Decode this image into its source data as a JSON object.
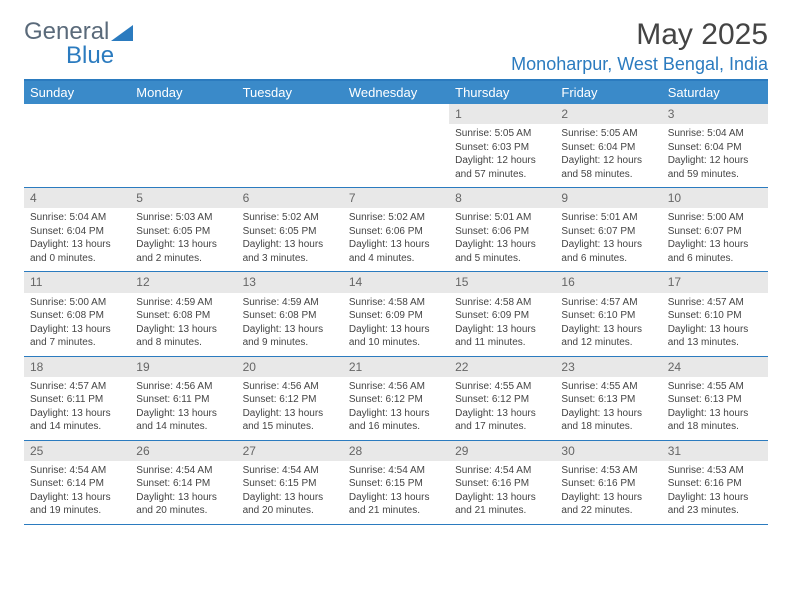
{
  "brand": {
    "part1": "General",
    "part2": "Blue"
  },
  "title": "May 2025",
  "location": "Monoharpur, West Bengal, India",
  "weekday_headers": [
    "Sunday",
    "Monday",
    "Tuesday",
    "Wednesday",
    "Thursday",
    "Friday",
    "Saturday"
  ],
  "colors": {
    "header_bg": "#3a8ac9",
    "accent": "#2b7bbf",
    "daynum_bg": "#e8e8e8",
    "text": "#444444"
  },
  "weeks": [
    [
      null,
      null,
      null,
      null,
      {
        "n": "1",
        "sr": "Sunrise: 5:05 AM",
        "ss": "Sunset: 6:03 PM",
        "dl": "Daylight: 12 hours and 57 minutes."
      },
      {
        "n": "2",
        "sr": "Sunrise: 5:05 AM",
        "ss": "Sunset: 6:04 PM",
        "dl": "Daylight: 12 hours and 58 minutes."
      },
      {
        "n": "3",
        "sr": "Sunrise: 5:04 AM",
        "ss": "Sunset: 6:04 PM",
        "dl": "Daylight: 12 hours and 59 minutes."
      }
    ],
    [
      {
        "n": "4",
        "sr": "Sunrise: 5:04 AM",
        "ss": "Sunset: 6:04 PM",
        "dl": "Daylight: 13 hours and 0 minutes."
      },
      {
        "n": "5",
        "sr": "Sunrise: 5:03 AM",
        "ss": "Sunset: 6:05 PM",
        "dl": "Daylight: 13 hours and 2 minutes."
      },
      {
        "n": "6",
        "sr": "Sunrise: 5:02 AM",
        "ss": "Sunset: 6:05 PM",
        "dl": "Daylight: 13 hours and 3 minutes."
      },
      {
        "n": "7",
        "sr": "Sunrise: 5:02 AM",
        "ss": "Sunset: 6:06 PM",
        "dl": "Daylight: 13 hours and 4 minutes."
      },
      {
        "n": "8",
        "sr": "Sunrise: 5:01 AM",
        "ss": "Sunset: 6:06 PM",
        "dl": "Daylight: 13 hours and 5 minutes."
      },
      {
        "n": "9",
        "sr": "Sunrise: 5:01 AM",
        "ss": "Sunset: 6:07 PM",
        "dl": "Daylight: 13 hours and 6 minutes."
      },
      {
        "n": "10",
        "sr": "Sunrise: 5:00 AM",
        "ss": "Sunset: 6:07 PM",
        "dl": "Daylight: 13 hours and 6 minutes."
      }
    ],
    [
      {
        "n": "11",
        "sr": "Sunrise: 5:00 AM",
        "ss": "Sunset: 6:08 PM",
        "dl": "Daylight: 13 hours and 7 minutes."
      },
      {
        "n": "12",
        "sr": "Sunrise: 4:59 AM",
        "ss": "Sunset: 6:08 PM",
        "dl": "Daylight: 13 hours and 8 minutes."
      },
      {
        "n": "13",
        "sr": "Sunrise: 4:59 AM",
        "ss": "Sunset: 6:08 PM",
        "dl": "Daylight: 13 hours and 9 minutes."
      },
      {
        "n": "14",
        "sr": "Sunrise: 4:58 AM",
        "ss": "Sunset: 6:09 PM",
        "dl": "Daylight: 13 hours and 10 minutes."
      },
      {
        "n": "15",
        "sr": "Sunrise: 4:58 AM",
        "ss": "Sunset: 6:09 PM",
        "dl": "Daylight: 13 hours and 11 minutes."
      },
      {
        "n": "16",
        "sr": "Sunrise: 4:57 AM",
        "ss": "Sunset: 6:10 PM",
        "dl": "Daylight: 13 hours and 12 minutes."
      },
      {
        "n": "17",
        "sr": "Sunrise: 4:57 AM",
        "ss": "Sunset: 6:10 PM",
        "dl": "Daylight: 13 hours and 13 minutes."
      }
    ],
    [
      {
        "n": "18",
        "sr": "Sunrise: 4:57 AM",
        "ss": "Sunset: 6:11 PM",
        "dl": "Daylight: 13 hours and 14 minutes."
      },
      {
        "n": "19",
        "sr": "Sunrise: 4:56 AM",
        "ss": "Sunset: 6:11 PM",
        "dl": "Daylight: 13 hours and 14 minutes."
      },
      {
        "n": "20",
        "sr": "Sunrise: 4:56 AM",
        "ss": "Sunset: 6:12 PM",
        "dl": "Daylight: 13 hours and 15 minutes."
      },
      {
        "n": "21",
        "sr": "Sunrise: 4:56 AM",
        "ss": "Sunset: 6:12 PM",
        "dl": "Daylight: 13 hours and 16 minutes."
      },
      {
        "n": "22",
        "sr": "Sunrise: 4:55 AM",
        "ss": "Sunset: 6:12 PM",
        "dl": "Daylight: 13 hours and 17 minutes."
      },
      {
        "n": "23",
        "sr": "Sunrise: 4:55 AM",
        "ss": "Sunset: 6:13 PM",
        "dl": "Daylight: 13 hours and 18 minutes."
      },
      {
        "n": "24",
        "sr": "Sunrise: 4:55 AM",
        "ss": "Sunset: 6:13 PM",
        "dl": "Daylight: 13 hours and 18 minutes."
      }
    ],
    [
      {
        "n": "25",
        "sr": "Sunrise: 4:54 AM",
        "ss": "Sunset: 6:14 PM",
        "dl": "Daylight: 13 hours and 19 minutes."
      },
      {
        "n": "26",
        "sr": "Sunrise: 4:54 AM",
        "ss": "Sunset: 6:14 PM",
        "dl": "Daylight: 13 hours and 20 minutes."
      },
      {
        "n": "27",
        "sr": "Sunrise: 4:54 AM",
        "ss": "Sunset: 6:15 PM",
        "dl": "Daylight: 13 hours and 20 minutes."
      },
      {
        "n": "28",
        "sr": "Sunrise: 4:54 AM",
        "ss": "Sunset: 6:15 PM",
        "dl": "Daylight: 13 hours and 21 minutes."
      },
      {
        "n": "29",
        "sr": "Sunrise: 4:54 AM",
        "ss": "Sunset: 6:16 PM",
        "dl": "Daylight: 13 hours and 21 minutes."
      },
      {
        "n": "30",
        "sr": "Sunrise: 4:53 AM",
        "ss": "Sunset: 6:16 PM",
        "dl": "Daylight: 13 hours and 22 minutes."
      },
      {
        "n": "31",
        "sr": "Sunrise: 4:53 AM",
        "ss": "Sunset: 6:16 PM",
        "dl": "Daylight: 13 hours and 23 minutes."
      }
    ]
  ]
}
